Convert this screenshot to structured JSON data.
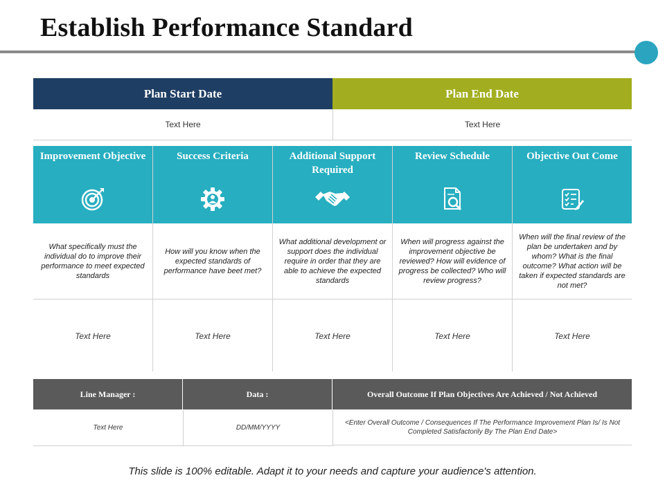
{
  "title": "Establish Performance Standard",
  "colors": {
    "accent": "#2aa4bf",
    "navy": "#1f3e63",
    "olive": "#a2ae1f",
    "teal": "#27aec0",
    "gray": "#5a5a5a"
  },
  "plan": {
    "start_label": "Plan Start Date",
    "end_label": "Plan End Date",
    "start_value": "Text Here",
    "end_value": "Text Here"
  },
  "columns": [
    {
      "title": "Improvement Objective",
      "icon": "target-icon",
      "description": "What specifically must the individual do to improve their performance to meet expected standards",
      "value": "Text Here"
    },
    {
      "title": "Success Criteria",
      "icon": "gear-person-icon",
      "description": "How will you know when the expected standards of performance have beet met?",
      "value": "Text Here"
    },
    {
      "title": "Additional Support Required",
      "icon": "handshake-icon",
      "description": "What additional development or support does the individual require in order that they are able to achieve the expected standards",
      "value": "Text Here"
    },
    {
      "title": "Review Schedule",
      "icon": "document-search-icon",
      "description": "When will progress against the improvement objective be reviewed? How will evidence of progress be collected? Who will review progress?",
      "value": "Text Here"
    },
    {
      "title": "Objective Out Come",
      "icon": "checklist-icon",
      "description": "When will the final review of the plan be undertaken and by whom? What is the final outcome? What action will be taken if expected standards are not met?",
      "value": "Text Here"
    }
  ],
  "bottom": {
    "line_manager_label": "Line Manager :",
    "data_label": "Data :",
    "outcome_label": "Overall Outcome If Plan Objectives Are Achieved / Not Achieved",
    "line_manager_value": "Text Here",
    "data_value": "DD/MM/YYYY",
    "outcome_value": "<Enter Overall Outcome / Consequences If The Performance Improvement Plan Is/ Is Not Completed Satisfactorily By The Plan End Date>"
  },
  "footer": "This slide is 100% editable. Adapt it to your needs and capture your audience's attention."
}
